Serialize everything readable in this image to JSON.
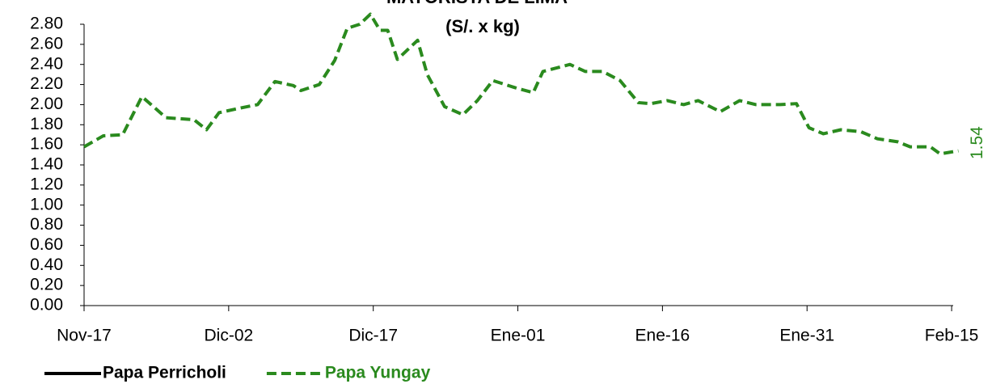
{
  "chart_data": {
    "type": "line",
    "title": "MAYORISTA DE LIMA",
    "subtitle": "(S/. x kg)",
    "x": [
      0,
      2,
      4,
      6,
      8.5,
      11.4,
      12.7,
      14,
      16.4,
      18,
      19.8,
      21.7,
      22.5,
      24.4,
      26,
      27.3,
      28.6,
      29.7,
      30.7,
      31.5,
      32.5,
      34.6,
      35.6,
      37.4,
      39.3,
      40.8,
      42.4,
      45,
      46.6,
      47.6,
      50.4,
      52,
      53.8,
      55.6,
      57.5,
      58.8,
      60.5,
      62.2,
      63.7,
      66,
      68,
      69.7,
      72.2,
      73.9,
      75.2,
      76.7,
      78.5,
      80.6,
      82.3,
      84.4,
      85.7,
      87.8,
      88.8,
      90.7
    ],
    "series": [
      {
        "name": "Papa Perricholi",
        "color": "#000000",
        "dashed": false,
        "values": [
          null,
          null,
          null,
          null,
          null,
          null,
          null,
          null,
          null,
          null,
          null,
          null,
          null,
          null,
          null,
          null,
          null,
          null,
          null,
          null,
          null,
          null,
          null,
          null,
          null,
          null,
          null,
          null,
          null,
          null,
          null,
          null,
          null,
          null,
          null,
          null,
          null,
          null,
          null,
          null,
          null,
          null,
          null,
          null,
          null,
          null,
          null,
          null,
          null,
          null,
          null,
          null,
          null,
          null
        ]
      },
      {
        "name": "Papa Yungay",
        "color": "#2a8a1e",
        "dashed": true,
        "values": [
          1.58,
          1.69,
          1.7,
          2.08,
          1.87,
          1.85,
          1.75,
          1.92,
          1.97,
          2.0,
          2.23,
          2.19,
          2.14,
          2.2,
          2.44,
          2.76,
          2.8,
          2.9,
          2.74,
          2.74,
          2.45,
          2.64,
          2.3,
          1.98,
          1.9,
          2.04,
          2.24,
          2.16,
          2.12,
          2.33,
          2.4,
          2.33,
          2.33,
          2.24,
          2.02,
          2.01,
          2.04,
          2.0,
          2.04,
          1.93,
          2.04,
          2.0,
          2.0,
          2.01,
          1.77,
          1.71,
          1.75,
          1.73,
          1.66,
          1.63,
          1.58,
          1.58,
          1.51,
          1.54
        ]
      }
    ],
    "xlim": [
      0,
      91
    ],
    "xticks": [
      {
        "value": 0,
        "label": "Nov-17"
      },
      {
        "value": 15,
        "label": "Dic-02"
      },
      {
        "value": 30,
        "label": "Dic-17"
      },
      {
        "value": 45,
        "label": "Ene-01"
      },
      {
        "value": 60,
        "label": "Ene-16"
      },
      {
        "value": 75,
        "label": "Ene-31"
      },
      {
        "value": 90,
        "label": "Feb-15"
      }
    ],
    "ylim": [
      0,
      2.8
    ],
    "yticks": [
      {
        "value": 0,
        "label": "0.00"
      },
      {
        "value": 0.2,
        "label": "0.20"
      },
      {
        "value": 0.4,
        "label": "0.40"
      },
      {
        "value": 0.6,
        "label": "0.60"
      },
      {
        "value": 0.8,
        "label": "0.80"
      },
      {
        "value": 1.0,
        "label": "1.00"
      },
      {
        "value": 1.2,
        "label": "1.20"
      },
      {
        "value": 1.4,
        "label": "1.40"
      },
      {
        "value": 1.6,
        "label": "1.60"
      },
      {
        "value": 1.8,
        "label": "1.80"
      },
      {
        "value": 2.0,
        "label": "2.00"
      },
      {
        "value": 2.2,
        "label": "2.20"
      },
      {
        "value": 2.4,
        "label": "2.40"
      },
      {
        "value": 2.6,
        "label": "2.60"
      },
      {
        "value": 2.8,
        "label": "2.80"
      }
    ],
    "grid": false,
    "legend": "bottom-left"
  }
}
